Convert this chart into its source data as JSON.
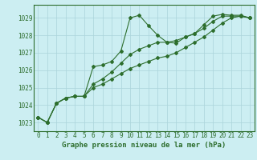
{
  "title": "Graphe pression niveau de la mer (hPa)",
  "background_color": "#cceef2",
  "grid_color": "#aad4da",
  "line_color": "#2d6e2d",
  "spine_color": "#2d6e2d",
  "x_ticks": [
    0,
    1,
    2,
    3,
    4,
    5,
    6,
    7,
    8,
    9,
    10,
    11,
    12,
    13,
    14,
    15,
    16,
    17,
    18,
    19,
    20,
    21,
    22,
    23
  ],
  "ylim": [
    1022.5,
    1029.75
  ],
  "yticks": [
    1023,
    1024,
    1025,
    1026,
    1027,
    1028,
    1029
  ],
  "series1": [
    1023.3,
    1023.0,
    1024.1,
    1024.4,
    1024.5,
    1024.5,
    1026.2,
    1026.3,
    1026.5,
    1027.1,
    1029.0,
    1029.15,
    1028.55,
    1028.0,
    1027.6,
    1027.55,
    1027.9,
    1028.1,
    1028.6,
    1029.1,
    1029.2,
    1029.15,
    1029.15,
    1029.0
  ],
  "series2": [
    1023.3,
    1023.0,
    1024.1,
    1024.4,
    1024.5,
    1024.5,
    1025.2,
    1025.5,
    1025.9,
    1026.4,
    1026.9,
    1027.2,
    1027.4,
    1027.6,
    1027.6,
    1027.7,
    1027.9,
    1028.1,
    1028.4,
    1028.8,
    1029.1,
    1029.1,
    1029.1,
    1029.0
  ],
  "series3": [
    1023.3,
    1023.0,
    1024.1,
    1024.4,
    1024.5,
    1024.5,
    1025.0,
    1025.2,
    1025.5,
    1025.8,
    1026.1,
    1026.3,
    1026.5,
    1026.7,
    1026.8,
    1027.0,
    1027.3,
    1027.6,
    1027.9,
    1028.3,
    1028.7,
    1029.0,
    1029.1,
    1029.0
  ],
  "tick_fontsize": 5.5,
  "label_fontsize": 6.5
}
